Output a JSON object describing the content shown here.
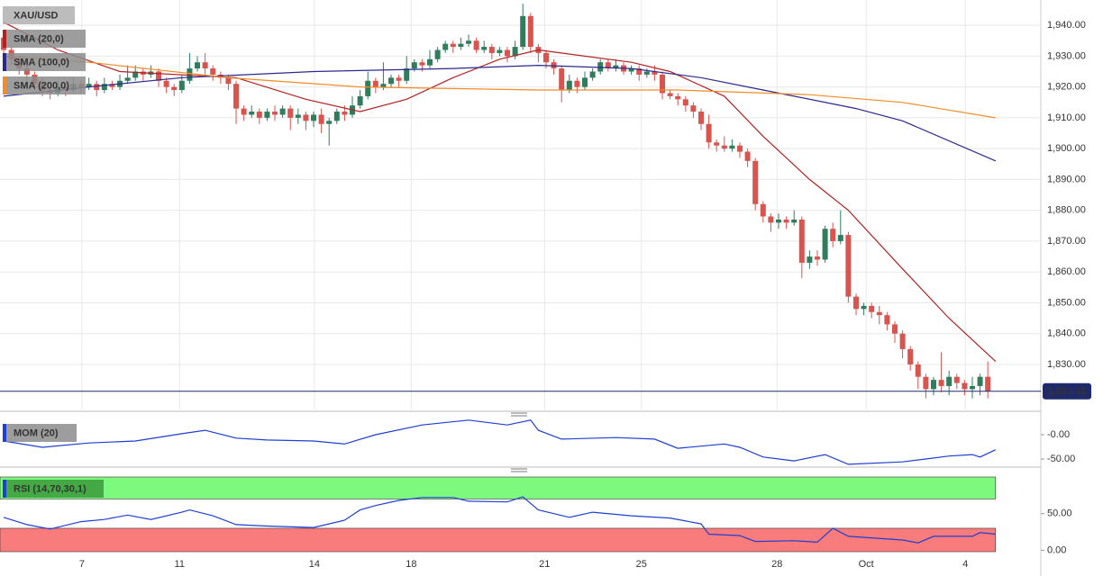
{
  "chart_data": [
    {
      "type": "candlestick",
      "title": "XAU/USD",
      "xlim": [
        -0.47,
        133.84
      ],
      "xticks": [
        {
          "value": 10.1,
          "label": "7"
        },
        {
          "value": 22.7,
          "label": "11"
        },
        {
          "value": 40.1,
          "label": "14"
        },
        {
          "value": 52.6,
          "label": "18"
        },
        {
          "value": 69.8,
          "label": "21"
        },
        {
          "value": 82.3,
          "label": "25"
        },
        {
          "value": 99.8,
          "label": "28"
        },
        {
          "value": 111.3,
          "label": "Oct"
        },
        {
          "value": 124.1,
          "label": "4"
        }
      ],
      "ylim": [
        1815.4,
        1948.2
      ],
      "yticks": [
        {
          "value": 1830,
          "label": "1,830.00"
        },
        {
          "value": 1840,
          "label": "1,840.00"
        },
        {
          "value": 1850,
          "label": "1,850.00"
        },
        {
          "value": 1860,
          "label": "1,860.00"
        },
        {
          "value": 1870,
          "label": "1,870.00"
        },
        {
          "value": 1880,
          "label": "1,880.00"
        },
        {
          "value": 1890,
          "label": "1,890.00"
        },
        {
          "value": 1900,
          "label": "1,900.00"
        },
        {
          "value": 1910,
          "label": "1,910.00"
        },
        {
          "value": 1920,
          "label": "1,920.00"
        },
        {
          "value": 1930,
          "label": "1,930.00"
        },
        {
          "value": 1940,
          "label": "1,940.00"
        }
      ],
      "grid": true,
      "up_color": "#2f7d5d",
      "down_color": "#d9534f",
      "open": [
        1936,
        1932,
        1929,
        1926,
        1924,
        1921,
        1919,
        1918,
        1920,
        1919,
        1921,
        1920,
        1921,
        1919,
        1921,
        1920,
        1922,
        1923,
        1925,
        1924,
        1925,
        1922,
        1920,
        1919,
        1922,
        1926,
        1928,
        1926,
        1924,
        1923,
        1921,
        1913,
        1911,
        1912,
        1910,
        1912,
        1911,
        1913,
        1910,
        1911,
        1909,
        1911,
        1908,
        1909,
        1912,
        1911,
        1914,
        1917,
        1922,
        1920,
        1921,
        1923,
        1922,
        1926,
        1928,
        1927,
        1929,
        1932,
        1934,
        1933,
        1934,
        1935,
        1932,
        1933,
        1931,
        1932,
        1930,
        1933,
        1943,
        1933,
        1931,
        1928,
        1926,
        1919,
        1922,
        1920,
        1923,
        1925,
        1928,
        1926,
        1927,
        1925,
        1926,
        1924,
        1925,
        1924,
        1918,
        1917,
        1916,
        1914,
        1912,
        1908,
        1902,
        1901,
        1900,
        1901,
        1899,
        1896,
        1882,
        1878,
        1876,
        1877,
        1876,
        1877,
        1863,
        1865,
        1864,
        1874,
        1870,
        1872,
        1852,
        1848,
        1849,
        1847,
        1846,
        1843,
        1840,
        1835,
        1830,
        1826,
        1822,
        1825,
        1823,
        1826,
        1824,
        1822,
        1823,
        1826
      ],
      "high": [
        1938,
        1933,
        1930,
        1927,
        1925,
        1923,
        1920,
        1922,
        1921,
        1923,
        1922,
        1923,
        1922,
        1923,
        1922,
        1924,
        1927,
        1927,
        1926,
        1927,
        1926,
        1923,
        1921,
        1924,
        1931,
        1930,
        1931,
        1927,
        1925,
        1924,
        1922,
        1914,
        1914,
        1913,
        1913,
        1914,
        1914,
        1914,
        1913,
        1912,
        1912,
        1913,
        1910,
        1913,
        1914,
        1917,
        1919,
        1925,
        1923,
        1928,
        1924,
        1924,
        1930,
        1929,
        1929,
        1932,
        1933,
        1935,
        1935,
        1936,
        1937,
        1936,
        1935,
        1934,
        1933,
        1933,
        1935,
        1947,
        1944,
        1934,
        1932,
        1929,
        1927,
        1924,
        1923,
        1925,
        1926,
        1929,
        1929,
        1929,
        1928,
        1927,
        1927,
        1926,
        1927,
        1925,
        1919,
        1918,
        1917,
        1915,
        1913,
        1911,
        1903,
        1904,
        1903,
        1902,
        1900,
        1897,
        1883,
        1879,
        1879,
        1878,
        1880,
        1878,
        1867,
        1867,
        1875,
        1876,
        1880,
        1873,
        1853,
        1850,
        1850,
        1849,
        1847,
        1844,
        1841,
        1836,
        1831,
        1827,
        1826,
        1834,
        1828,
        1827,
        1825,
        1826,
        1827,
        1831
      ],
      "low": [
        1931,
        1927,
        1924,
        1922,
        1919,
        1917,
        1916,
        1917,
        1917,
        1918,
        1918,
        1919,
        1917,
        1918,
        1919,
        1919,
        1921,
        1922,
        1922,
        1923,
        1920,
        1918,
        1917,
        1918,
        1921,
        1925,
        1924,
        1922,
        1921,
        1919,
        1908,
        1909,
        1910,
        1908,
        1909,
        1909,
        1910,
        1906,
        1908,
        1906,
        1907,
        1905,
        1901,
        1908,
        1909,
        1910,
        1913,
        1916,
        1918,
        1919,
        1920,
        1920,
        1921,
        1925,
        1925,
        1926,
        1928,
        1931,
        1931,
        1932,
        1933,
        1931,
        1931,
        1929,
        1930,
        1928,
        1929,
        1932,
        1931,
        1928,
        1926,
        1924,
        1915,
        1918,
        1918,
        1919,
        1922,
        1924,
        1925,
        1925,
        1924,
        1924,
        1922,
        1923,
        1922,
        1916,
        1916,
        1914,
        1912,
        1910,
        1906,
        1900,
        1899,
        1899,
        1899,
        1897,
        1894,
        1880,
        1876,
        1873,
        1874,
        1874,
        1875,
        1858,
        1861,
        1862,
        1863,
        1868,
        1869,
        1850,
        1846,
        1846,
        1845,
        1843,
        1841,
        1837,
        1832,
        1828,
        1822,
        1819,
        1820,
        1821,
        1820,
        1822,
        1820,
        1819,
        1820,
        1819
      ],
      "close": [
        1932,
        1929,
        1926,
        1924,
        1921,
        1919,
        1918,
        1920,
        1919,
        1921,
        1920,
        1921,
        1919,
        1921,
        1920,
        1922,
        1923,
        1925,
        1924,
        1925,
        1922,
        1920,
        1919,
        1922,
        1926,
        1928,
        1926,
        1924,
        1923,
        1921,
        1913,
        1911,
        1912,
        1910,
        1912,
        1911,
        1913,
        1910,
        1911,
        1909,
        1911,
        1908,
        1909,
        1912,
        1911,
        1914,
        1917,
        1922,
        1920,
        1921,
        1923,
        1922,
        1926,
        1928,
        1927,
        1929,
        1932,
        1934,
        1933,
        1934,
        1935,
        1932,
        1933,
        1931,
        1932,
        1930,
        1933,
        1943,
        1933,
        1931,
        1928,
        1926,
        1919,
        1922,
        1920,
        1923,
        1925,
        1928,
        1926,
        1927,
        1925,
        1926,
        1924,
        1925,
        1924,
        1918,
        1917,
        1916,
        1914,
        1912,
        1908,
        1902,
        1901,
        1900,
        1901,
        1899,
        1896,
        1882,
        1878,
        1876,
        1877,
        1876,
        1877,
        1863,
        1865,
        1864,
        1874,
        1870,
        1872,
        1852,
        1848,
        1849,
        1847,
        1846,
        1843,
        1840,
        1835,
        1830,
        1826,
        1822,
        1825,
        1823,
        1826,
        1824,
        1822,
        1823,
        1826,
        1821.31
      ],
      "series": [
        {
          "name": "SMA (20,0)",
          "color": "#b22222",
          "x": [
            0,
            7,
            15,
            30,
            39,
            46,
            52,
            58,
            64,
            69,
            81,
            86,
            93,
            98,
            104,
            109,
            116,
            122,
            128
          ],
          "values": [
            1941,
            1932,
            1925,
            1923,
            1916,
            1912,
            1916,
            1923,
            1929,
            1932,
            1928,
            1925,
            1917,
            1904,
            1890,
            1880,
            1861,
            1845,
            1831
          ]
        },
        {
          "name": "SMA (100,0)",
          "color": "#2a2a8c",
          "x": [
            0,
            11,
            23,
            40,
            58,
            69,
            81,
            90,
            98,
            110,
            116,
            128
          ],
          "values": [
            1917,
            1920,
            1923,
            1925,
            1926,
            1927,
            1926,
            1923,
            1919,
            1913,
            1909,
            1896
          ]
        },
        {
          "name": "SMA (200,0)",
          "color": "#f28c28",
          "x": [
            0,
            11,
            29,
            46,
            69,
            87,
            104,
            116,
            128
          ],
          "values": [
            1930,
            1928,
            1923,
            1920,
            1919,
            1919,
            1917.5,
            1915,
            1910
          ]
        }
      ],
      "last_price": {
        "value": 1821.31,
        "label": "1,821.31"
      },
      "last_price_color": "#1f2a6b"
    },
    {
      "type": "line",
      "title": "MOM (20)",
      "xlim": [
        -0.47,
        133.84
      ],
      "ylim": [
        -63,
        42.6
      ],
      "yticks": [
        {
          "value": 0,
          "label": "-0.00"
        },
        {
          "value": -50,
          "label": "-50.00"
        }
      ],
      "series": [
        {
          "color": "#1f3fd1",
          "x": [
            0,
            5,
            11,
            17,
            23,
            26,
            30,
            34,
            40,
            44,
            48,
            54,
            60,
            65,
            68,
            69,
            72,
            79,
            84,
            87,
            93,
            95,
            98,
            102,
            106,
            109,
            116,
            119,
            122,
            125,
            126,
            128
          ],
          "values": [
            -13,
            -26,
            -17,
            -13,
            2,
            9,
            -7,
            -11,
            -13,
            -19,
            0,
            20,
            30,
            20,
            30,
            9,
            -9,
            -6,
            -9,
            -28,
            -19,
            -26,
            -46,
            -54,
            -41,
            -61,
            -56,
            -50,
            -44,
            -41,
            -46,
            -31
          ]
        }
      ]
    },
    {
      "type": "line",
      "title": "RSI (14,70,30,1)",
      "xlim": [
        -0.47,
        133.84
      ],
      "ylim": [
        -2,
        100
      ],
      "yticks": [
        {
          "value": 0,
          "label": "0.00"
        },
        {
          "value": 50,
          "label": "50.00"
        }
      ],
      "overbought": 70,
      "oversold": 30,
      "overbought_color": "#7dfa7d",
      "oversold_color": "#f87c7c",
      "series": [
        {
          "color": "#1f3fd1",
          "x": [
            0,
            3,
            6,
            10,
            13,
            16,
            19,
            23,
            24,
            27,
            30,
            34,
            40,
            44,
            46,
            48,
            51,
            54,
            58,
            60,
            65,
            67,
            69,
            73,
            76,
            81,
            86,
            90,
            91,
            95,
            97,
            102,
            105,
            107,
            109,
            116,
            118,
            120,
            125,
            126,
            128
          ],
          "values": [
            45,
            35,
            29,
            39,
            42,
            48,
            42,
            52,
            55,
            47,
            35,
            33,
            31,
            41,
            55,
            61,
            68,
            72,
            72,
            67,
            66,
            73,
            55,
            45,
            52,
            47,
            44,
            36,
            22,
            20,
            12,
            13,
            11,
            30,
            19,
            14,
            10,
            19,
            19,
            24,
            22
          ]
        }
      ]
    }
  ]
}
